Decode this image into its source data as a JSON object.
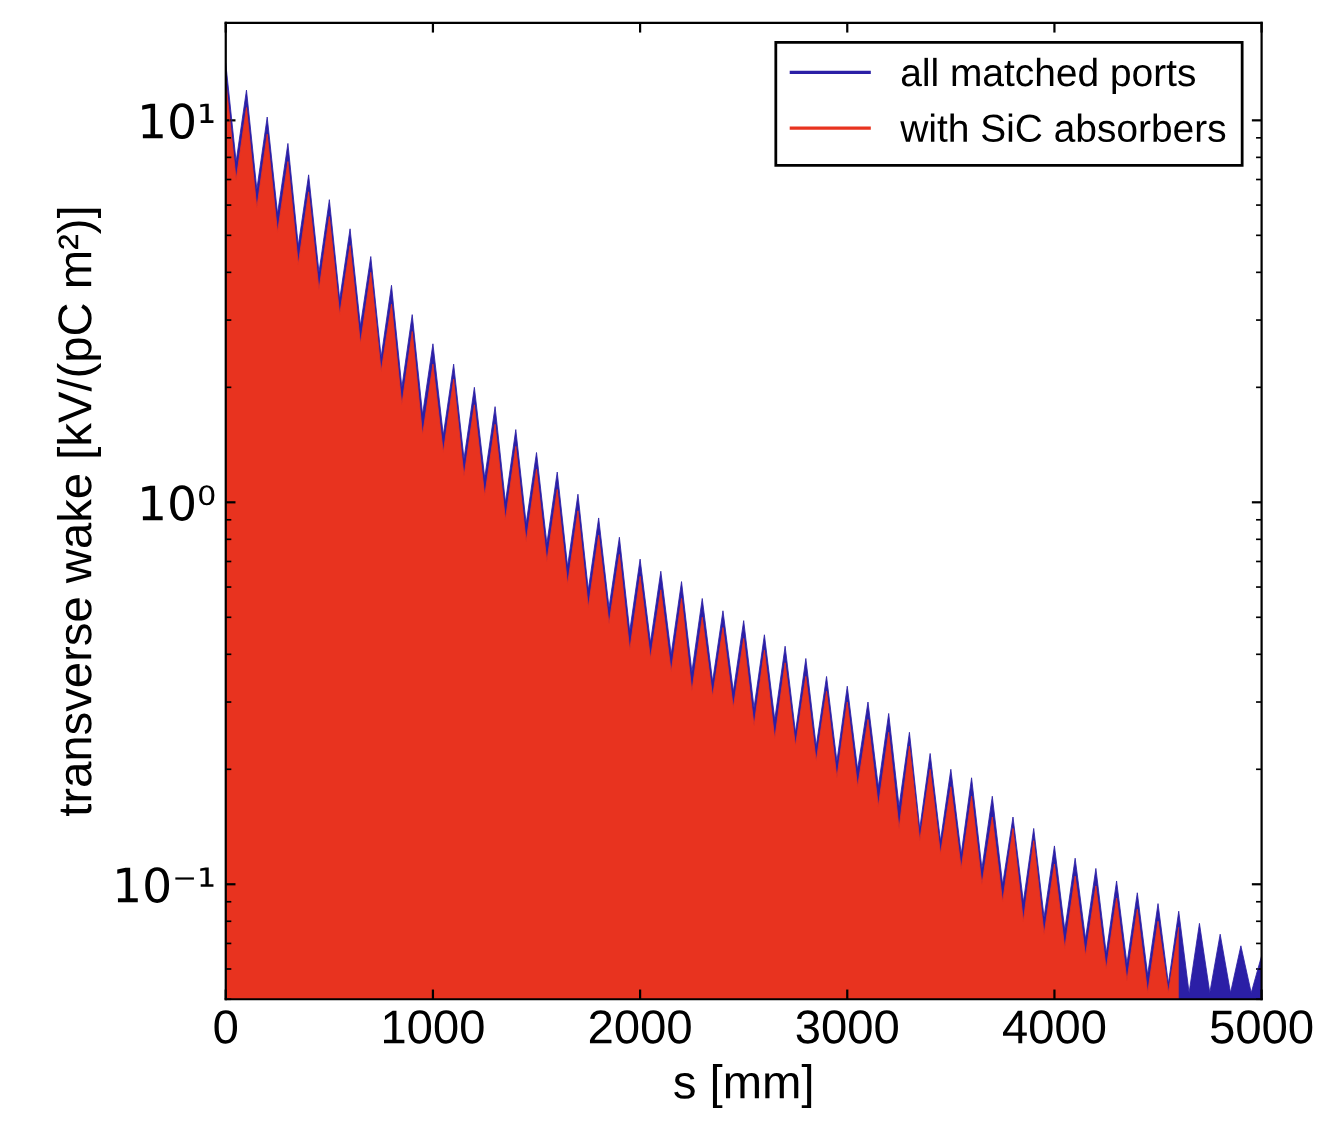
{
  "chart_data": {
    "type": "area",
    "xlabel": "s [mm]",
    "ylabel": "transverse wake [kV/(pC m²)]",
    "x": [
      0,
      50,
      100,
      150,
      200,
      250,
      300,
      350,
      400,
      450,
      500,
      550,
      600,
      650,
      700,
      750,
      800,
      850,
      900,
      950,
      1000,
      1050,
      1100,
      1150,
      1200,
      1250,
      1300,
      1350,
      1400,
      1450,
      1500,
      1550,
      1600,
      1650,
      1700,
      1750,
      1800,
      1850,
      1900,
      1950,
      2000,
      2050,
      2100,
      2150,
      2200,
      2250,
      2300,
      2350,
      2400,
      2450,
      2500,
      2550,
      2600,
      2650,
      2700,
      2750,
      2800,
      2850,
      2900,
      2950,
      3000,
      3050,
      3100,
      3150,
      3200,
      3250,
      3300,
      3350,
      3400,
      3450,
      3500,
      3550,
      3600,
      3650,
      3700,
      3750,
      3800,
      3850,
      3900,
      3950,
      4000,
      4050,
      4100,
      4150,
      4200,
      4250,
      4300,
      4350,
      4400,
      4450,
      4500,
      4550,
      4600,
      4650,
      4700,
      4750,
      4800,
      4850,
      4900,
      4950,
      5000
    ],
    "series": [
      {
        "name": "all matched ports",
        "color": "#2b1fa6",
        "values": [
          14.1,
          7.8,
          12.0,
          6.6,
          10.2,
          5.7,
          8.7,
          4.7,
          7.2,
          4.0,
          6.2,
          3.4,
          5.2,
          2.9,
          4.4,
          2.4,
          3.7,
          2.0,
          3.1,
          1.7,
          2.6,
          1.5,
          2.3,
          1.3,
          2.0,
          1.16,
          1.78,
          1.0,
          1.55,
          0.88,
          1.35,
          0.78,
          1.2,
          0.68,
          1.05,
          0.59,
          0.91,
          0.53,
          0.81,
          0.46,
          0.71,
          0.43,
          0.66,
          0.4,
          0.62,
          0.36,
          0.56,
          0.34,
          0.52,
          0.32,
          0.49,
          0.29,
          0.45,
          0.27,
          0.42,
          0.25,
          0.39,
          0.23,
          0.35,
          0.21,
          0.33,
          0.2,
          0.3,
          0.18,
          0.28,
          0.16,
          0.25,
          0.14,
          0.22,
          0.13,
          0.2,
          0.12,
          0.19,
          0.11,
          0.17,
          0.1,
          0.15,
          0.09,
          0.14,
          0.082,
          0.126,
          0.076,
          0.117,
          0.072,
          0.11,
          0.066,
          0.102,
          0.062,
          0.095,
          0.058,
          0.089,
          0.055,
          0.085,
          0.052,
          0.079,
          0.052,
          0.074,
          0.052,
          0.069,
          0.052,
          0.065
        ]
      },
      {
        "name": "with SiC absorbers",
        "color": "#e8331f",
        "values": [
          12.7,
          7.0,
          10.8,
          5.9,
          9.2,
          5.1,
          7.8,
          4.2,
          6.5,
          3.6,
          5.6,
          3.1,
          4.7,
          2.6,
          4.0,
          2.2,
          3.3,
          1.8,
          2.8,
          1.5,
          2.3,
          1.35,
          2.1,
          1.17,
          1.8,
          1.04,
          1.6,
          0.9,
          1.4,
          0.79,
          1.22,
          0.7,
          1.08,
          0.61,
          0.95,
          0.53,
          0.82,
          0.48,
          0.73,
          0.41,
          0.64,
          0.39,
          0.59,
          0.36,
          0.56,
          0.32,
          0.5,
          0.31,
          0.47,
          0.29,
          0.44,
          0.26,
          0.41,
          0.24,
          0.38,
          0.23,
          0.35,
          0.21,
          0.32,
          0.19,
          0.3,
          0.18,
          0.27,
          0.16,
          0.25,
          0.14,
          0.23,
          0.13,
          0.2,
          0.12,
          0.18,
          0.11,
          0.17,
          0.1,
          0.15,
          0.09,
          0.14,
          0.08,
          0.13,
          0.074,
          0.113,
          0.068,
          0.105,
          0.065,
          0.099,
          0.06,
          0.092,
          0.056,
          0.086,
          0.052,
          0.08,
          0.052,
          0.077,
          null,
          null,
          null,
          null,
          null,
          null,
          null,
          null
        ]
      }
    ],
    "log": "y",
    "xlim": [
      0,
      5000
    ],
    "xticks": [
      0,
      1000,
      2000,
      3000,
      4000,
      5000
    ],
    "ylim": [
      0.05,
      18
    ],
    "yticks": [
      {
        "value": 0.1,
        "label": "10⁻¹"
      },
      {
        "value": 1,
        "label": "10⁰"
      },
      {
        "value": 10,
        "label": "10¹"
      }
    ],
    "legend": "top right",
    "grid": false
  }
}
